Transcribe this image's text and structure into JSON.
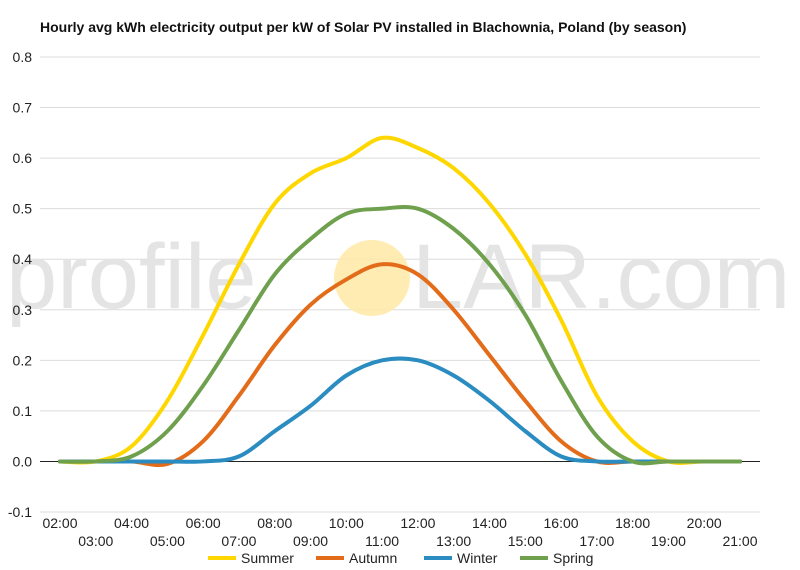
{
  "chart_data": {
    "type": "line",
    "title": "Hourly avg kWh electricity output per kW of Solar PV installed in Blachownia, Poland (by season)",
    "xlabel": "",
    "ylabel": "",
    "x": [
      "02:00",
      "03:00",
      "04:00",
      "05:00",
      "06:00",
      "07:00",
      "08:00",
      "09:00",
      "10:00",
      "11:00",
      "12:00",
      "13:00",
      "14:00",
      "15:00",
      "16:00",
      "17:00",
      "18:00",
      "19:00",
      "20:00",
      "21:00"
    ],
    "x_ticks_top": [
      "02:00",
      "04:00",
      "06:00",
      "08:00",
      "10:00",
      "12:00",
      "14:00",
      "16:00",
      "18:00",
      "20:00"
    ],
    "x_ticks_bottom": [
      "03:00",
      "05:00",
      "07:00",
      "09:00",
      "11:00",
      "13:00",
      "15:00",
      "17:00",
      "19:00",
      "21:00"
    ],
    "ylim": [
      -0.1,
      0.8
    ],
    "yticks": [
      "0.8",
      "0.7",
      "0.6",
      "0.5",
      "0.4",
      "0.3",
      "0.2",
      "0.1",
      "0.0",
      "-0.1"
    ],
    "ytick_values": [
      0.8,
      0.7,
      0.6,
      0.5,
      0.4,
      0.3,
      0.2,
      0.1,
      0.0,
      -0.1
    ],
    "grid": true,
    "legend_position": "bottom",
    "series": [
      {
        "name": "Summer",
        "color": "#FFD700",
        "values": [
          0.0,
          0.0,
          0.03,
          0.12,
          0.25,
          0.39,
          0.51,
          0.57,
          0.6,
          0.64,
          0.62,
          0.58,
          0.51,
          0.41,
          0.28,
          0.13,
          0.04,
          0.0,
          0.0,
          0.0
        ]
      },
      {
        "name": "Autumn",
        "color": "#E36C1A",
        "values": [
          0.0,
          0.0,
          0.0,
          -0.005,
          0.04,
          0.13,
          0.23,
          0.31,
          0.36,
          0.39,
          0.37,
          0.3,
          0.21,
          0.12,
          0.04,
          0.0,
          0.0,
          0.0,
          0.0,
          0.0
        ]
      },
      {
        "name": "Winter",
        "color": "#2A8CC0",
        "values": [
          0.0,
          0.0,
          0.0,
          0.0,
          0.0,
          0.01,
          0.06,
          0.11,
          0.17,
          0.2,
          0.2,
          0.17,
          0.12,
          0.06,
          0.01,
          0.0,
          0.0,
          0.0,
          0.0,
          0.0
        ]
      },
      {
        "name": "Spring",
        "color": "#6FA04D",
        "values": [
          0.0,
          0.0,
          0.01,
          0.06,
          0.15,
          0.26,
          0.37,
          0.44,
          0.49,
          0.5,
          0.5,
          0.46,
          0.39,
          0.29,
          0.16,
          0.05,
          0.0,
          0.0,
          0.0,
          0.0
        ]
      }
    ]
  },
  "watermark": {
    "text_left": "profile",
    "text_right": "LAR.com",
    "sun_color": "#FFE9A6"
  }
}
